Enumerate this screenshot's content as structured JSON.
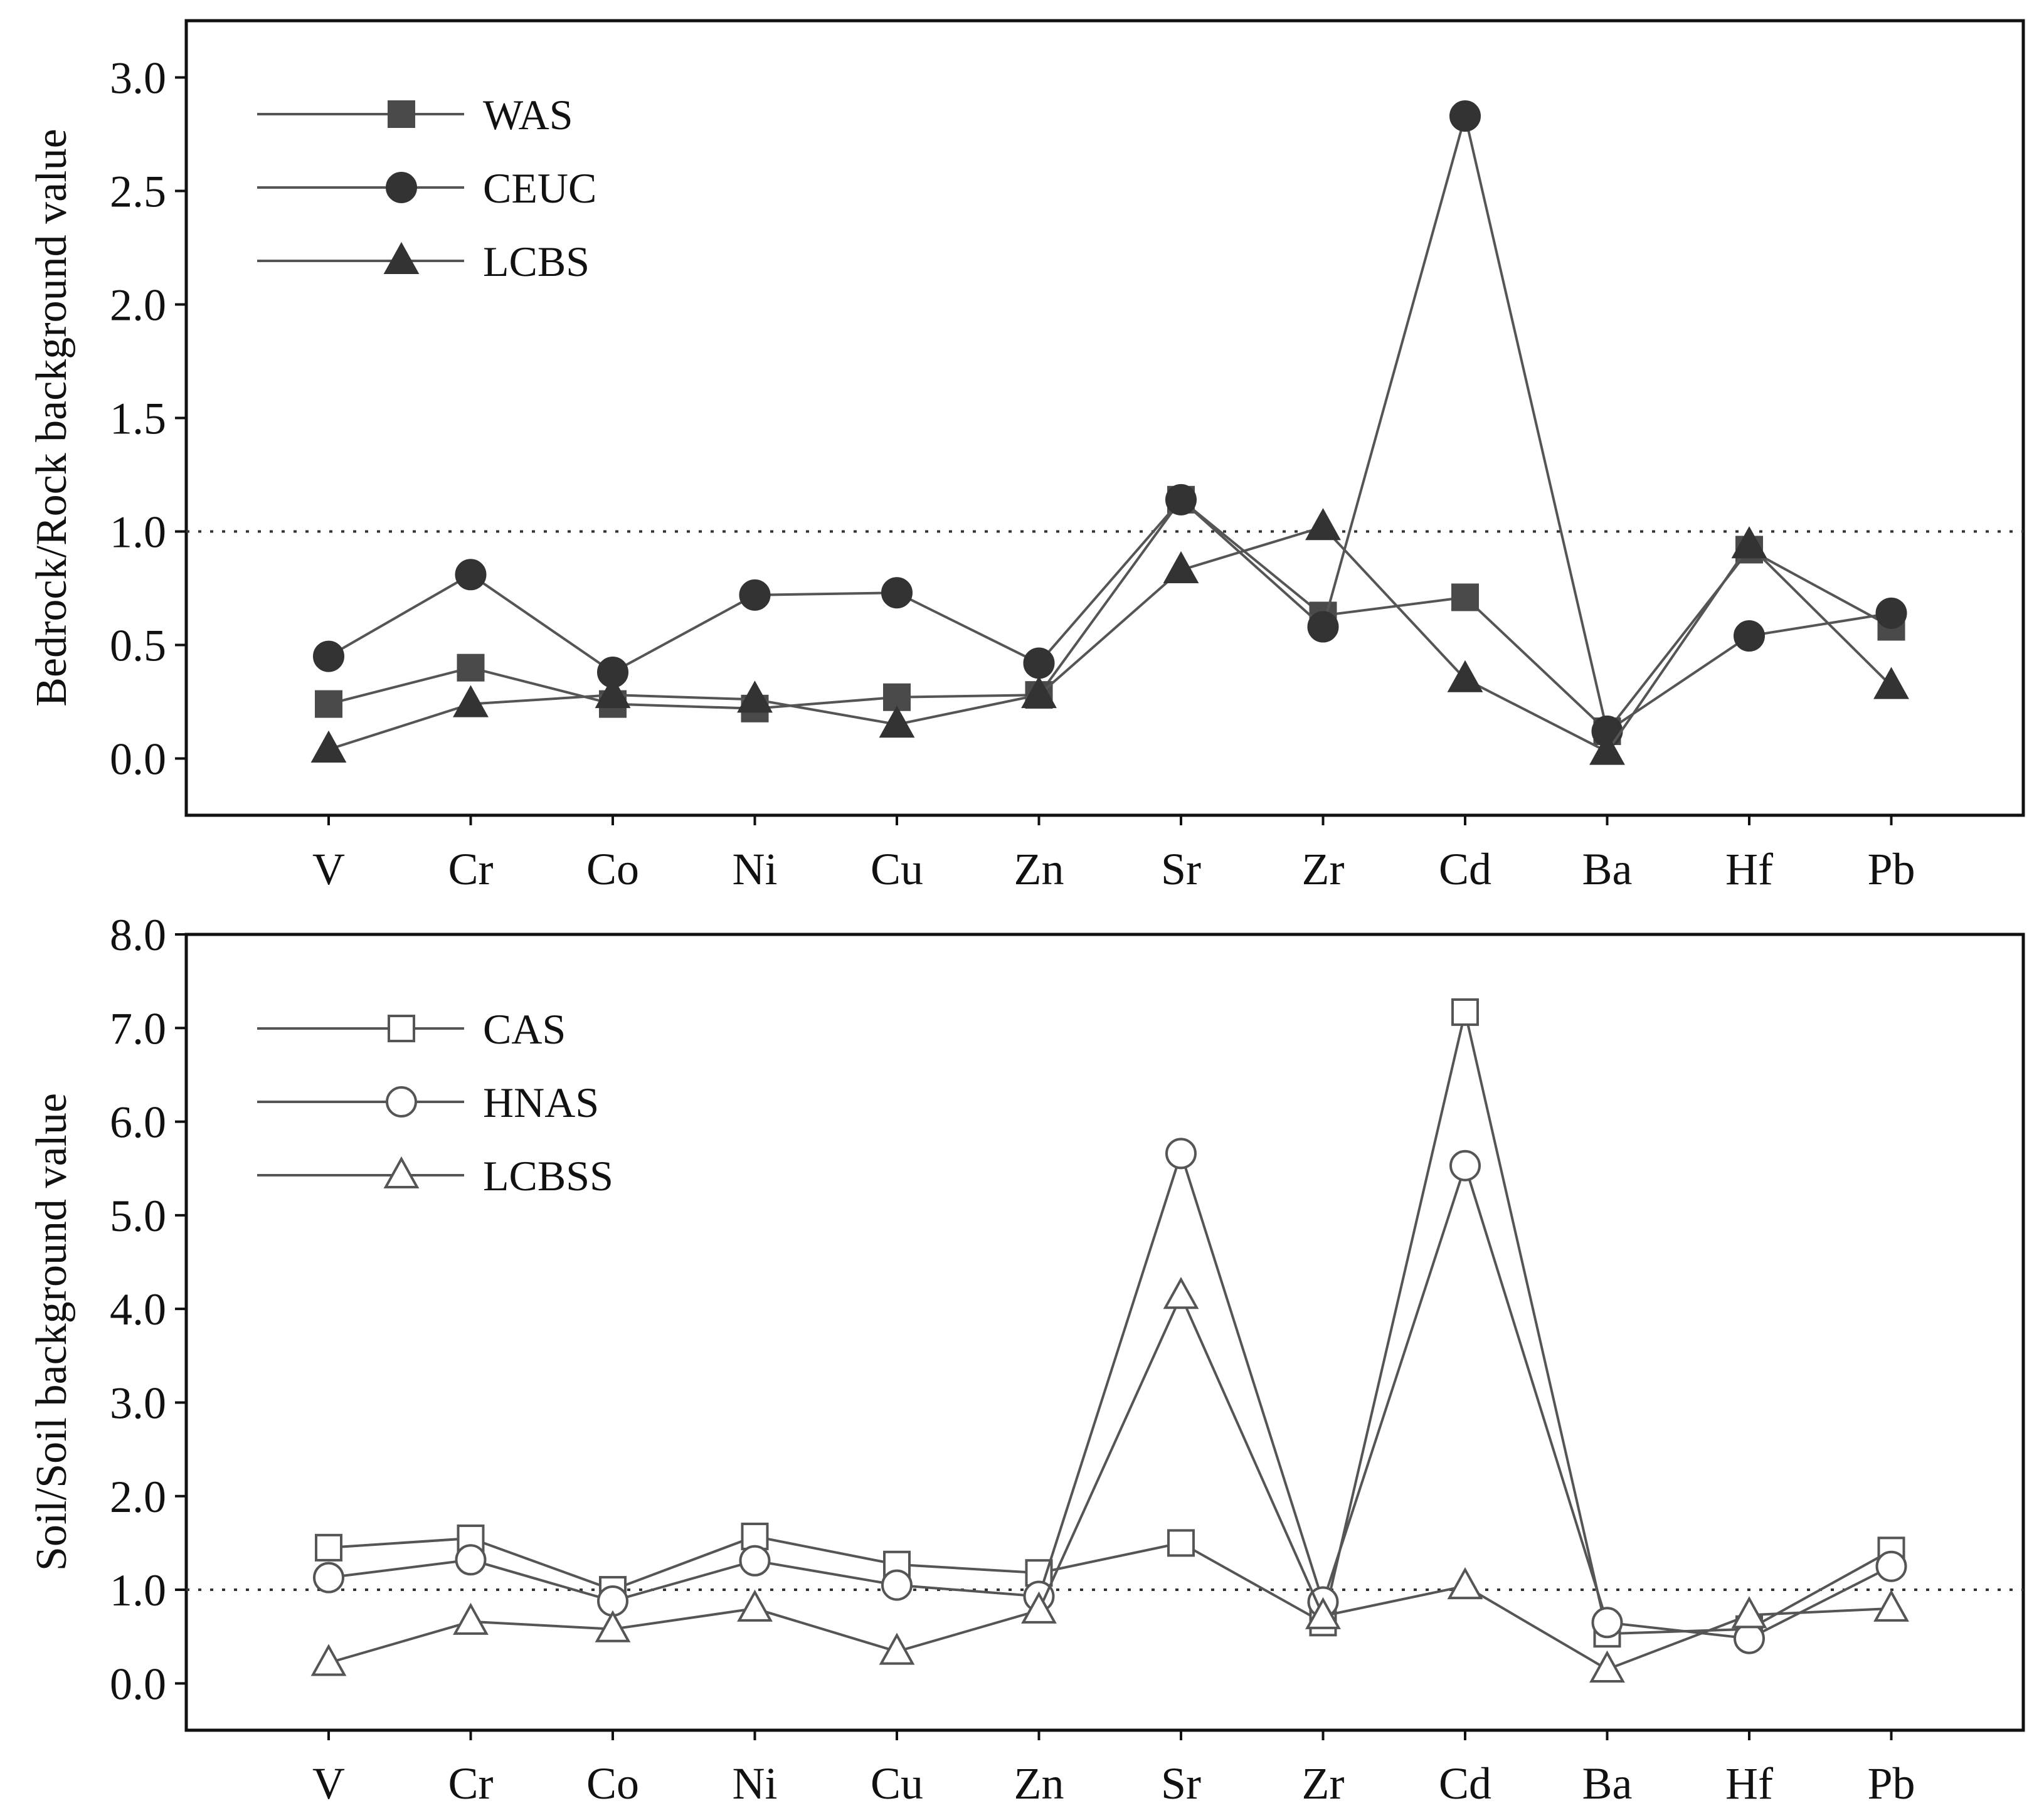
{
  "chart_data": [
    {
      "type": "line",
      "categories": [
        "V",
        "Cr",
        "Co",
        "Ni",
        "Cu",
        "Zn",
        "Sr",
        "Zr",
        "Cd",
        "Ba",
        "Hf",
        "Pb"
      ],
      "ylabel": "Bedrock/Rock background value",
      "xlabel": "",
      "ylim": [
        -0.25,
        3.25
      ],
      "yticks": [
        0.0,
        0.5,
        1.0,
        1.5,
        2.0,
        2.5,
        3.0
      ],
      "ytick_labels": [
        "0.0",
        "0.5",
        "1.0",
        "1.5",
        "2.0",
        "2.5",
        "3.0"
      ],
      "reference_line": 1.0,
      "legend_position": "top-left",
      "series": [
        {
          "name": "WAS",
          "marker": "square",
          "filled": true,
          "color": "#4a4a4a",
          "values": [
            0.24,
            0.4,
            0.24,
            0.22,
            0.27,
            0.28,
            1.14,
            0.63,
            0.71,
            0.12,
            0.92,
            0.58
          ]
        },
        {
          "name": "CEUC",
          "marker": "circle",
          "filled": true,
          "color": "#333333",
          "values": [
            0.45,
            0.81,
            0.38,
            0.72,
            0.73,
            0.42,
            1.14,
            0.58,
            2.83,
            0.12,
            0.54,
            0.64
          ]
        },
        {
          "name": "LCBS",
          "marker": "triangle",
          "filled": true,
          "color": "#333333",
          "values": [
            0.04,
            0.24,
            0.28,
            0.26,
            0.15,
            0.28,
            0.83,
            1.02,
            0.35,
            0.03,
            0.94,
            0.32
          ]
        }
      ]
    },
    {
      "type": "line",
      "categories": [
        "V",
        "Cr",
        "Co",
        "Ni",
        "Cu",
        "Zn",
        "Sr",
        "Zr",
        "Cd",
        "Ba",
        "Hf",
        "Pb"
      ],
      "ylabel": "Soil/Soil background value",
      "xlabel": "",
      "ylim": [
        -0.5,
        8.0
      ],
      "yticks": [
        0.0,
        1.0,
        2.0,
        3.0,
        4.0,
        5.0,
        6.0,
        7.0,
        8.0
      ],
      "ytick_labels": [
        "0.0",
        "1.0",
        "2.0",
        "3.0",
        "4.0",
        "5.0",
        "6.0",
        "7.0",
        "8.0"
      ],
      "reference_line": 1.0,
      "legend_position": "top-left",
      "series": [
        {
          "name": "CAS",
          "marker": "square",
          "filled": false,
          "color": "#555555",
          "values": [
            1.45,
            1.55,
            1.0,
            1.57,
            1.27,
            1.18,
            1.5,
            0.65,
            7.17,
            0.53,
            0.58,
            1.42
          ]
        },
        {
          "name": "HNAS",
          "marker": "circle",
          "filled": false,
          "color": "#555555",
          "values": [
            1.13,
            1.32,
            0.88,
            1.31,
            1.05,
            0.93,
            5.66,
            0.87,
            5.53,
            0.65,
            0.48,
            1.25
          ]
        },
        {
          "name": "LCBSS",
          "marker": "triangle",
          "filled": false,
          "color": "#555555",
          "values": [
            0.22,
            0.66,
            0.58,
            0.8,
            0.34,
            0.78,
            4.14,
            0.72,
            1.04,
            0.15,
            0.73,
            0.8
          ]
        }
      ]
    }
  ]
}
